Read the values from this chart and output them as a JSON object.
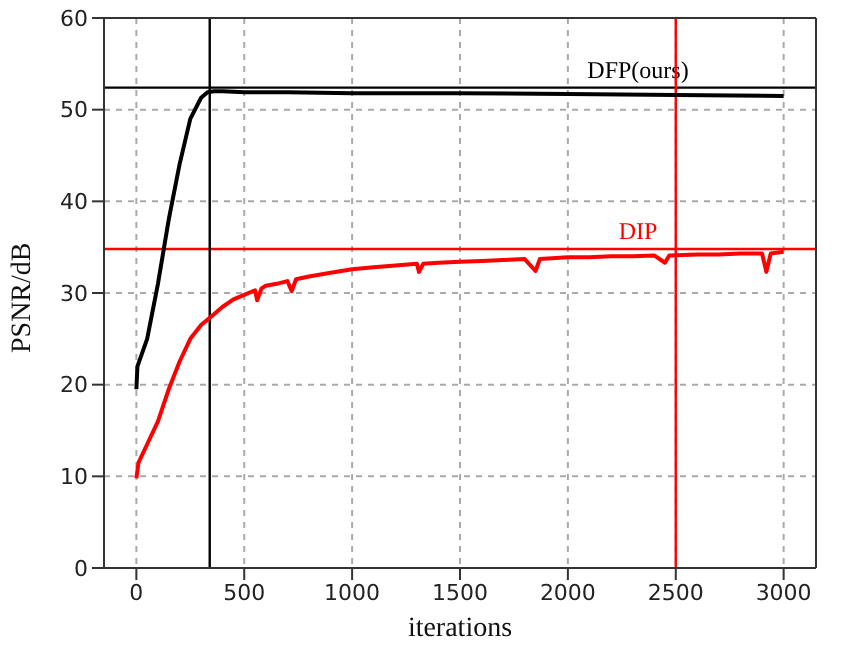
{
  "chart_data": {
    "type": "line",
    "xlabel": "iterations",
    "ylabel": "PSNR/dB",
    "xlim": [
      -150,
      3150
    ],
    "ylim": [
      0,
      60
    ],
    "xticks": [
      0,
      500,
      1000,
      1500,
      2000,
      2500,
      3000
    ],
    "yticks": [
      0,
      10,
      20,
      30,
      40,
      50,
      60
    ],
    "grid": true,
    "line_style": "solid",
    "marker": "none",
    "series": [
      {
        "color": "#000000",
        "x": [
          0,
          5,
          50,
          100,
          150,
          200,
          250,
          300,
          330,
          360,
          400,
          500,
          700,
          1000,
          1500,
          2000,
          2500,
          3000
        ],
        "values": [
          19.5,
          22,
          25,
          31,
          38,
          44,
          49,
          51.3,
          51.9,
          52,
          52,
          51.9,
          51.9,
          51.8,
          51.8,
          51.7,
          51.6,
          51.5
        ]
      },
      {
        "color": "#ff0000",
        "x": [
          0,
          10,
          50,
          100,
          150,
          200,
          250,
          300,
          350,
          400,
          450,
          500,
          550,
          560,
          580,
          600,
          650,
          700,
          720,
          740,
          800,
          900,
          1000,
          1100,
          1200,
          1300,
          1310,
          1330,
          1400,
          1500,
          1600,
          1700,
          1800,
          1850,
          1870,
          2000,
          2100,
          2200,
          2300,
          2400,
          2450,
          2470,
          2600,
          2700,
          2800,
          2900,
          2920,
          2940,
          3000
        ],
        "values": [
          9.8,
          11.5,
          13.5,
          16,
          19.5,
          22.5,
          25,
          26.5,
          27.5,
          28.5,
          29.3,
          29.8,
          30.3,
          29.2,
          30.5,
          30.8,
          31,
          31.3,
          30.2,
          31.5,
          31.8,
          32.2,
          32.6,
          32.8,
          33,
          33.2,
          32.3,
          33.2,
          33.3,
          33.4,
          33.5,
          33.6,
          33.7,
          32.4,
          33.7,
          33.9,
          33.9,
          34,
          34,
          34.1,
          33.3,
          34.1,
          34.2,
          34.2,
          34.3,
          34.3,
          32.3,
          34.3,
          34.5
        ]
      }
    ],
    "ref_lines": [
      {
        "axis": "y",
        "value": 52.4,
        "color": "#000000",
        "label": "DFP(ours)"
      },
      {
        "axis": "y",
        "value": 34.8,
        "color": "#ff0000",
        "label": "DIP"
      },
      {
        "axis": "x",
        "value": 340,
        "color": "#000000"
      },
      {
        "axis": "x",
        "value": 2500,
        "color": "#ff0000"
      }
    ]
  }
}
